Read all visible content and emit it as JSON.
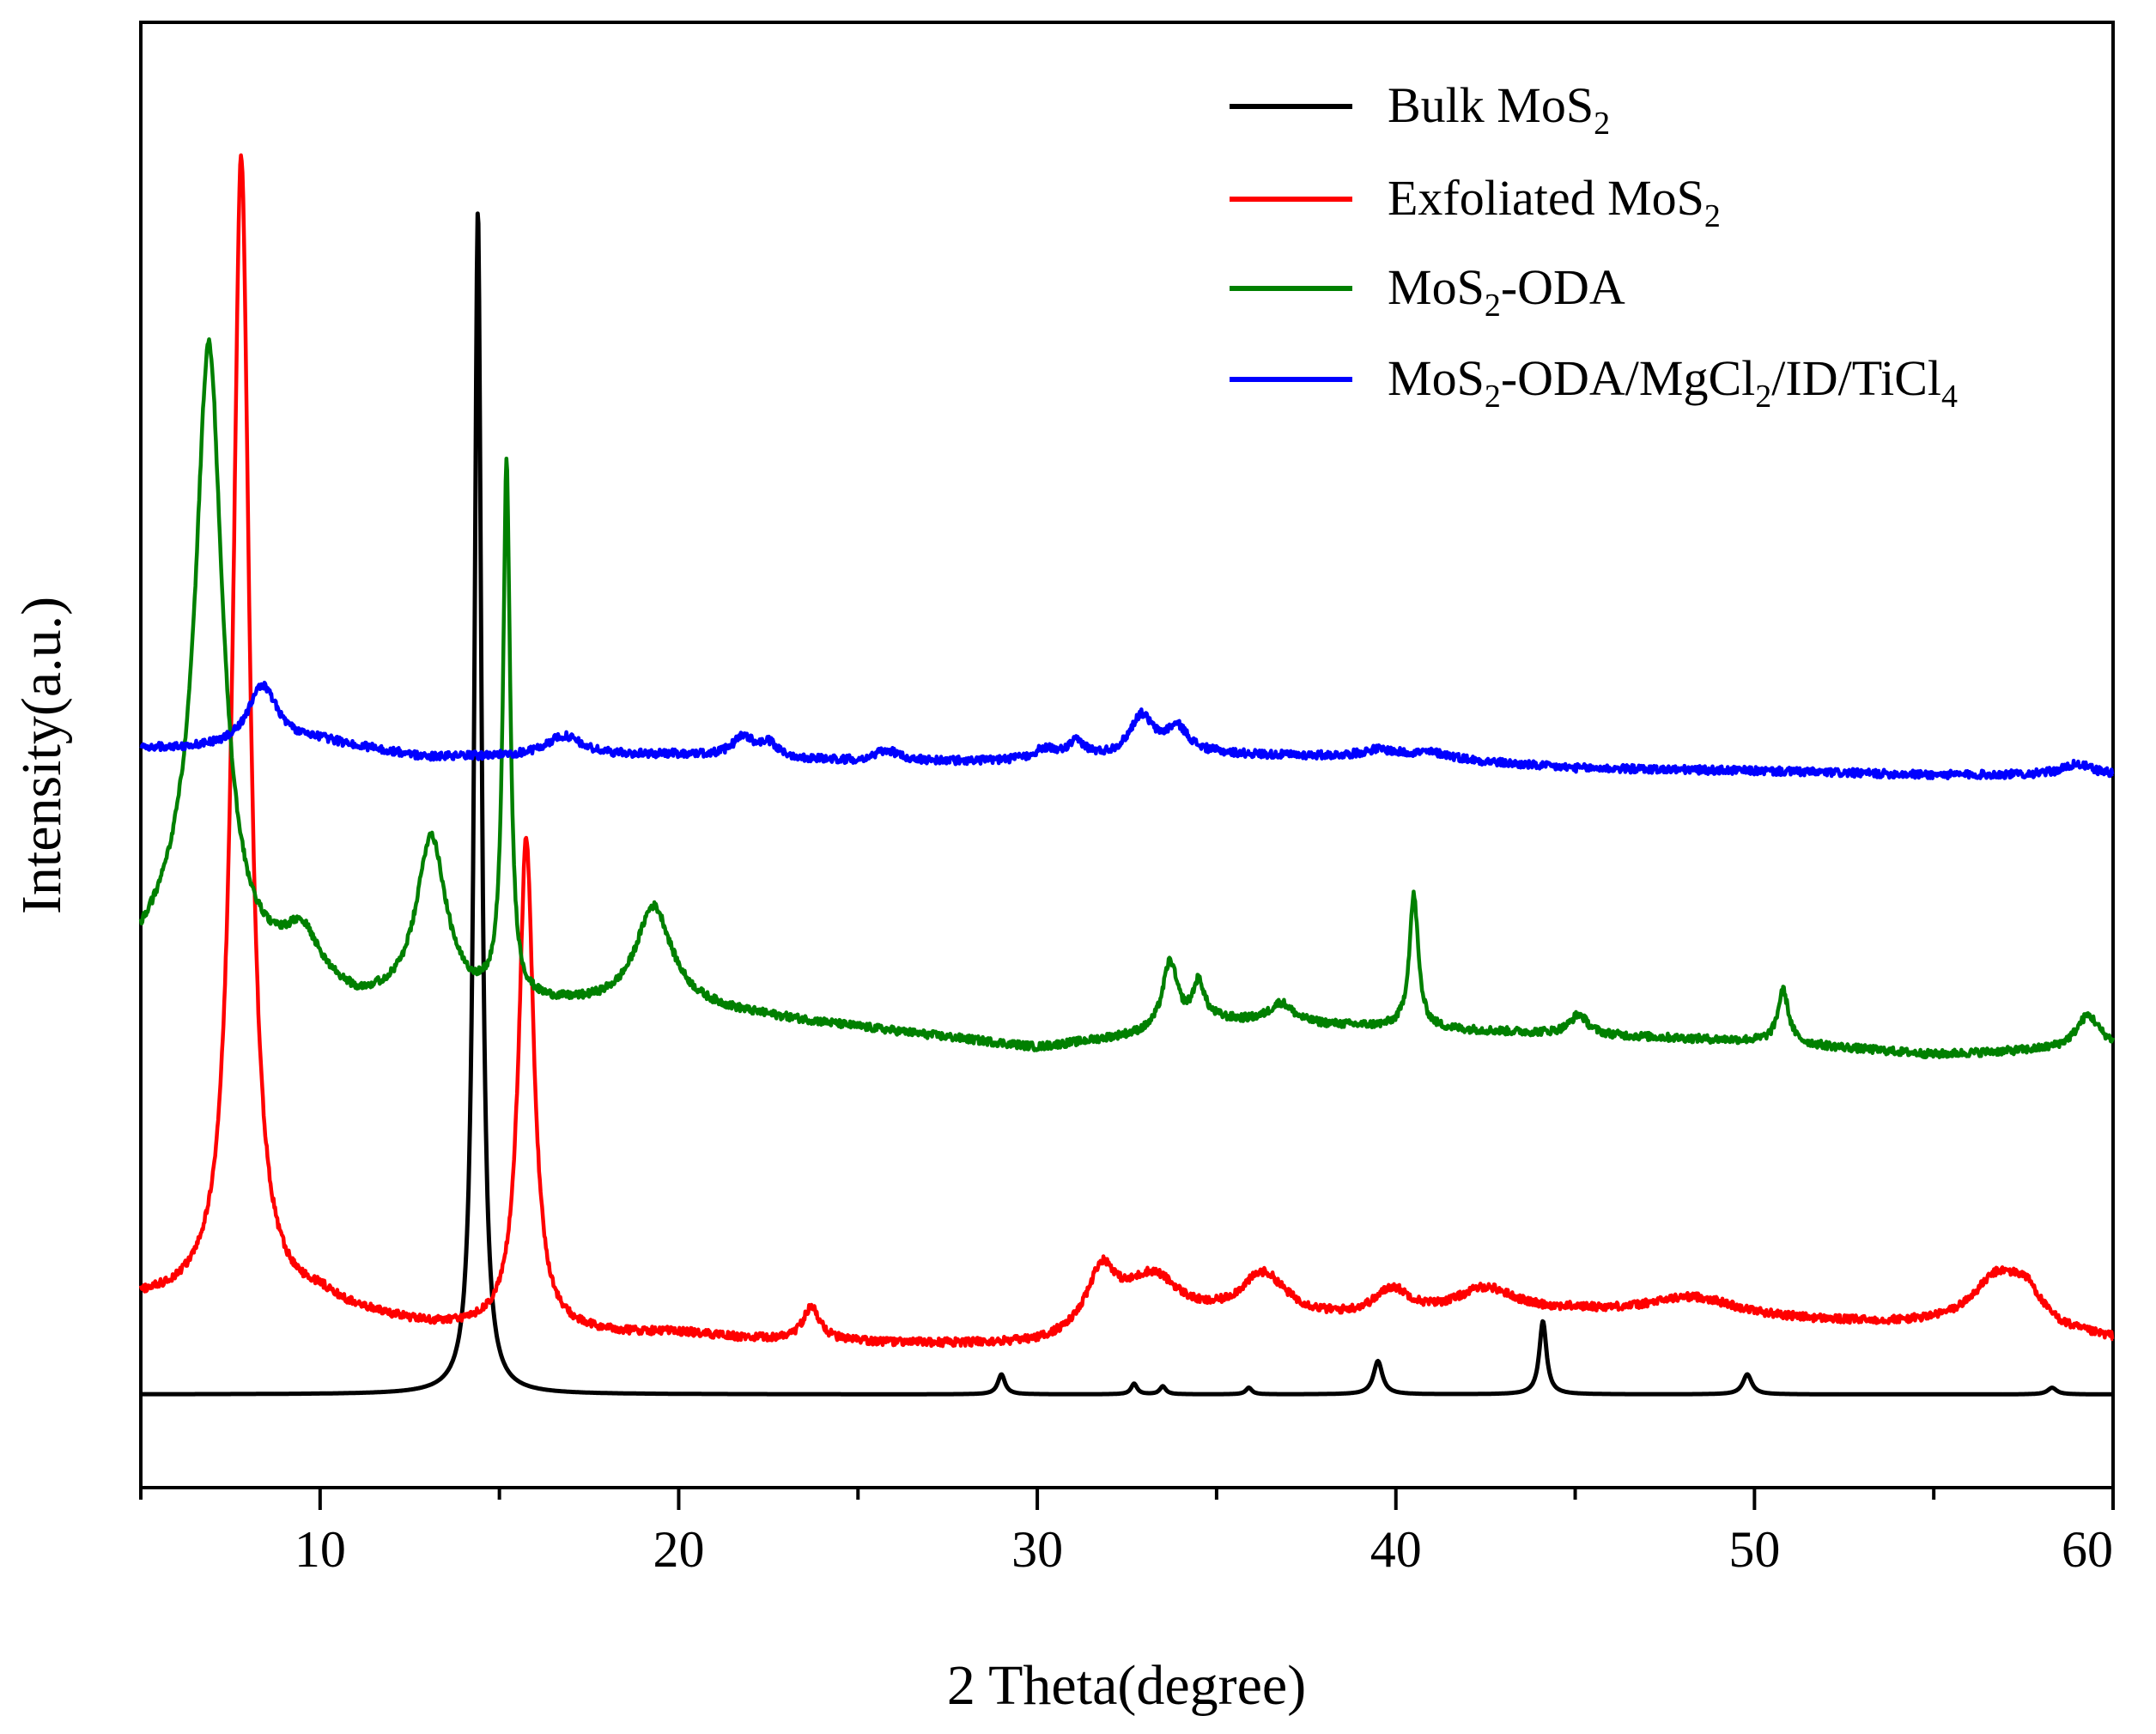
{
  "chart_data": {
    "type": "line",
    "title": "",
    "xlabel": "2 Theta(degree)",
    "ylabel": "Intensity(a.u.)",
    "xlim": [
      5,
      60
    ],
    "ylim": [
      -0.5,
      10.5
    ],
    "xticks": [
      10,
      20,
      30,
      40,
      50,
      60
    ],
    "grid": false,
    "legend_position": "top-right",
    "series": [
      {
        "name": "Bulk MoS2",
        "legend_parts": [
          {
            "t": "Bulk MoS"
          },
          {
            "t": "2",
            "sub": true
          }
        ],
        "color": "#000000",
        "baseline": 0.2,
        "noise": 0.0,
        "peaks": [
          [
            14.4,
            8.9,
            0.12
          ],
          [
            29.0,
            0.15,
            0.12
          ],
          [
            32.7,
            0.08,
            0.1
          ],
          [
            33.5,
            0.06,
            0.1
          ],
          [
            35.9,
            0.05,
            0.1
          ],
          [
            39.5,
            0.25,
            0.15
          ],
          [
            44.1,
            0.55,
            0.12
          ],
          [
            49.8,
            0.15,
            0.15
          ],
          [
            58.3,
            0.05,
            0.15
          ]
        ],
        "offsets": [],
        "x_points": [
          5,
          10,
          14.4,
          20,
          29.0,
          33.5,
          39.5,
          44.1,
          49.8,
          55,
          60
        ],
        "y_points": [
          0.2,
          0.2,
          9.1,
          0.2,
          0.35,
          0.26,
          0.45,
          0.75,
          0.35,
          0.2,
          0.3
        ]
      },
      {
        "name": "Exfoliated MoS2",
        "legend_parts": [
          {
            "t": "Exfoliated MoS"
          },
          {
            "t": "2",
            "sub": true
          }
        ],
        "color": "#ff0000",
        "baseline": 0.75,
        "noise": 0.03,
        "peaks": [
          [
            7.8,
            8.6,
            0.28
          ],
          [
            15.75,
            3.7,
            0.25
          ],
          [
            23.7,
            0.25,
            0.3
          ],
          [
            31.8,
            0.45,
            0.5
          ],
          [
            33.2,
            0.4,
            1.0
          ],
          [
            36.3,
            0.35,
            0.8
          ],
          [
            39.9,
            0.2,
            0.6
          ],
          [
            42.5,
            0.2,
            1.0
          ],
          [
            48.3,
            0.15,
            1.5
          ],
          [
            56.8,
            0.4,
            0.9
          ],
          [
            57.6,
            0.2,
            0.5
          ],
          [
            20.0,
            0.05,
            1.5
          ],
          [
            10.0,
            0.05,
            0.5
          ]
        ],
        "offsets": [
          [
            5,
            0.9
          ],
          [
            7.0,
            0.9
          ],
          [
            10,
            0.85
          ],
          [
            13,
            0.7
          ],
          [
            20,
            0.6
          ],
          [
            30,
            0.55
          ],
          [
            35,
            0.7
          ],
          [
            45,
            0.8
          ],
          [
            55,
            0.7
          ],
          [
            60,
            0.6
          ]
        ],
        "x_points": [
          5,
          7.8,
          10,
          15.75,
          20,
          23.7,
          30,
          32.8,
          36.3,
          40,
          42.5,
          48.3,
          56.8,
          60
        ],
        "y_points": [
          0.9,
          9.5,
          0.95,
          4.5,
          0.65,
          0.85,
          0.6,
          1.2,
          1.0,
          0.9,
          0.95,
          0.9,
          1.1,
          0.6
        ]
      },
      {
        "name": "MoS2-ODA",
        "legend_parts": [
          {
            "t": "MoS"
          },
          {
            "t": "2",
            "sub": true
          },
          {
            "t": "-ODA"
          }
        ],
        "color": "#008000",
        "baseline": 3.0,
        "noise": 0.03,
        "peaks": [
          [
            6.9,
            4.5,
            0.45
          ],
          [
            9.5,
            0.35,
            0.6
          ],
          [
            13.1,
            1.25,
            0.5
          ],
          [
            15.2,
            4.0,
            0.12
          ],
          [
            19.3,
            0.75,
            0.6
          ],
          [
            33.7,
            0.5,
            0.25
          ],
          [
            34.5,
            0.3,
            0.2
          ],
          [
            36.8,
            0.15,
            0.4
          ],
          [
            40.5,
            1.0,
            0.15
          ],
          [
            45.1,
            0.15,
            0.3
          ],
          [
            50.8,
            0.4,
            0.18
          ],
          [
            59.3,
            0.25,
            0.4
          ]
        ],
        "offsets": [
          [
            5,
            3.5
          ],
          [
            6,
            3.7
          ],
          [
            8,
            3.4
          ],
          [
            11,
            3.1
          ],
          [
            15,
            3.1
          ],
          [
            20,
            3.1
          ],
          [
            25,
            2.95
          ],
          [
            30,
            2.8
          ],
          [
            33,
            2.9
          ],
          [
            35,
            3.0
          ],
          [
            40,
            2.95
          ],
          [
            45,
            2.9
          ],
          [
            50,
            2.85
          ],
          [
            55,
            2.75
          ],
          [
            60,
            2.8
          ]
        ],
        "x_points": [
          5,
          6.9,
          9.5,
          13.1,
          15.2,
          19.3,
          30,
          33.7,
          40.5,
          45.1,
          50.8,
          55,
          59.3,
          60
        ],
        "y_points": [
          3.6,
          8.0,
          3.75,
          4.3,
          7.0,
          3.9,
          2.8,
          3.4,
          3.95,
          3.05,
          3.25,
          2.8,
          3.05,
          2.8
        ]
      },
      {
        "name": "MoS2-ODA/MgCl2/ID/TiCl4",
        "legend_parts": [
          {
            "t": "MoS"
          },
          {
            "t": "2",
            "sub": true
          },
          {
            "t": "-ODA/MgCl"
          },
          {
            "t": "2",
            "sub": true
          },
          {
            "t": "/ID/TiCl"
          },
          {
            "t": "4",
            "sub": true
          }
        ],
        "color": "#0000ff",
        "baseline": 5.05,
        "noise": 0.03,
        "peaks": [
          [
            8.4,
            0.45,
            0.5
          ],
          [
            16.8,
            0.15,
            0.6
          ],
          [
            21.8,
            0.15,
            0.35
          ],
          [
            22.5,
            0.1,
            0.3
          ],
          [
            25.8,
            0.08,
            0.4
          ],
          [
            30.2,
            0.08,
            0.4
          ],
          [
            31.1,
            0.12,
            0.3
          ],
          [
            32.9,
            0.3,
            0.4
          ],
          [
            33.9,
            0.2,
            0.4
          ],
          [
            39.5,
            0.05,
            0.5
          ],
          [
            41.0,
            0.05,
            0.8
          ],
          [
            59.0,
            0.08,
            0.5
          ]
        ],
        "offsets": [
          [
            5,
            5.05
          ],
          [
            7,
            5.05
          ],
          [
            10,
            5.1
          ],
          [
            13,
            4.98
          ],
          [
            20,
            5.0
          ],
          [
            25,
            4.95
          ],
          [
            30,
            4.95
          ],
          [
            35,
            5.0
          ],
          [
            40,
            4.98
          ],
          [
            45,
            4.9
          ],
          [
            50,
            4.88
          ],
          [
            55,
            4.85
          ],
          [
            60,
            4.85
          ]
        ],
        "x_points": [
          5,
          8.4,
          16.8,
          21.8,
          26,
          31.1,
          32.9,
          41,
          50,
          59,
          60
        ],
        "y_points": [
          5.05,
          5.5,
          5.15,
          5.2,
          5.02,
          5.08,
          5.3,
          5.05,
          4.9,
          4.95,
          4.85
        ]
      }
    ]
  }
}
